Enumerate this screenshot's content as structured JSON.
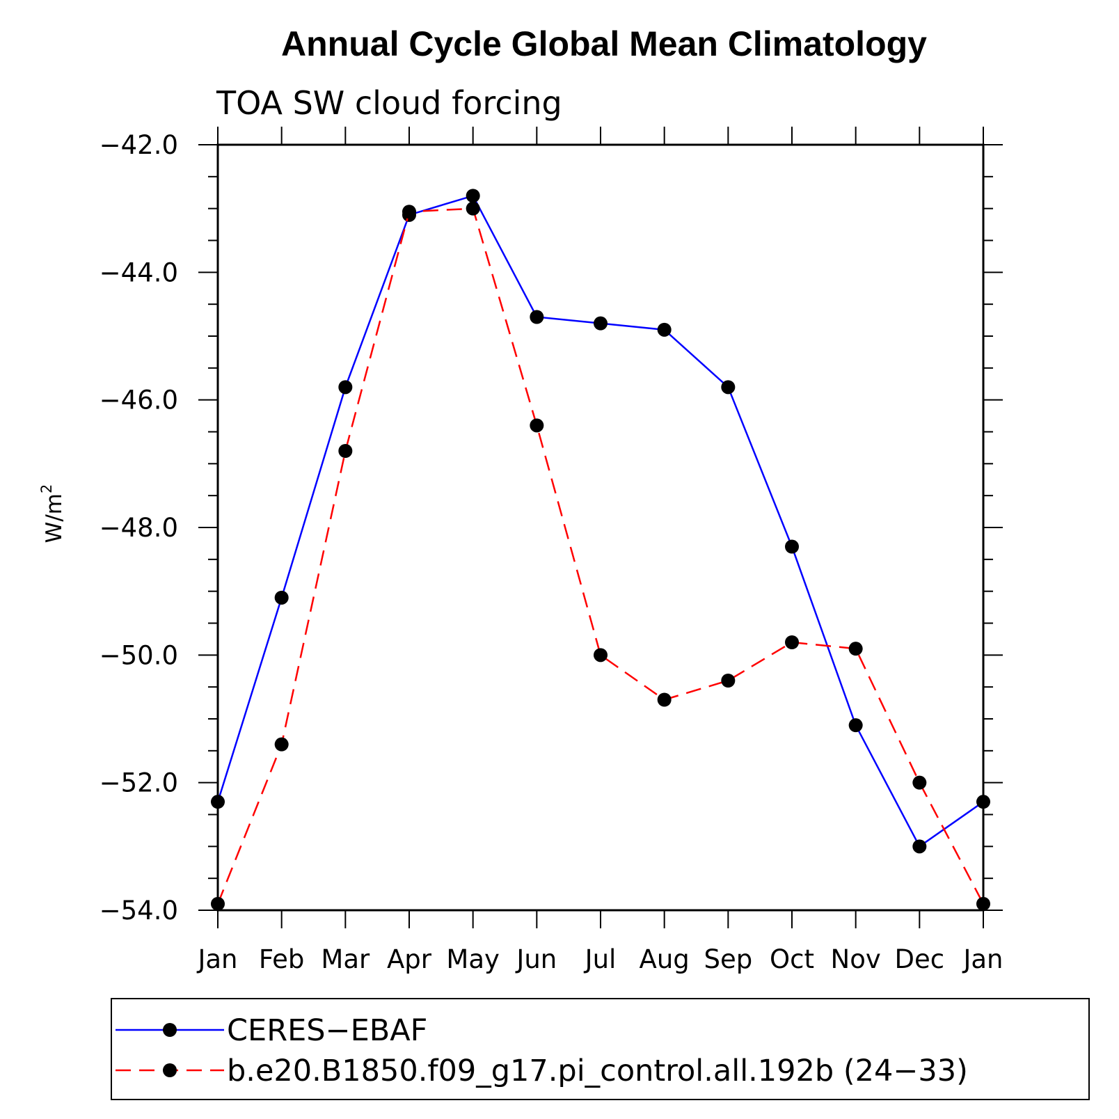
{
  "chart_data": {
    "type": "line",
    "title": "Annual Cycle Global Mean Climatology",
    "subtitle": "TOA SW cloud forcing",
    "ylabel": "W/m",
    "ylabel_sup": "2",
    "xlabel": "",
    "categories": [
      "Jan",
      "Feb",
      "Mar",
      "Apr",
      "May",
      "Jun",
      "Jul",
      "Aug",
      "Sep",
      "Oct",
      "Nov",
      "Dec",
      "Jan"
    ],
    "ylim": [
      -54.0,
      -42.0
    ],
    "yticks": [
      -42.0,
      -44.0,
      -46.0,
      -48.0,
      -50.0,
      -52.0,
      -54.0
    ],
    "ytick_labels": [
      "−42.0",
      "−44.0",
      "−46.0",
      "−48.0",
      "−50.0",
      "−52.0",
      "−54.0"
    ],
    "grid": false,
    "legend_position": "bottom",
    "series": [
      {
        "name": "CERES−EBAF",
        "color": "#0000ff",
        "dash": "solid",
        "values": [
          -52.3,
          -49.1,
          -45.8,
          -43.1,
          -42.8,
          -44.7,
          -44.8,
          -44.9,
          -45.8,
          -48.3,
          -51.1,
          -53.0,
          -52.3
        ]
      },
      {
        "name": "b.e20.B1850.f09_g17.pi_control.all.192b (24−33)",
        "color": "#ff0000",
        "dash": "dashed",
        "values": [
          -53.9,
          -51.4,
          -46.8,
          -43.05,
          -43.0,
          -46.4,
          -50.0,
          -50.7,
          -50.4,
          -49.8,
          -49.9,
          -52.0,
          -53.9
        ]
      }
    ]
  }
}
